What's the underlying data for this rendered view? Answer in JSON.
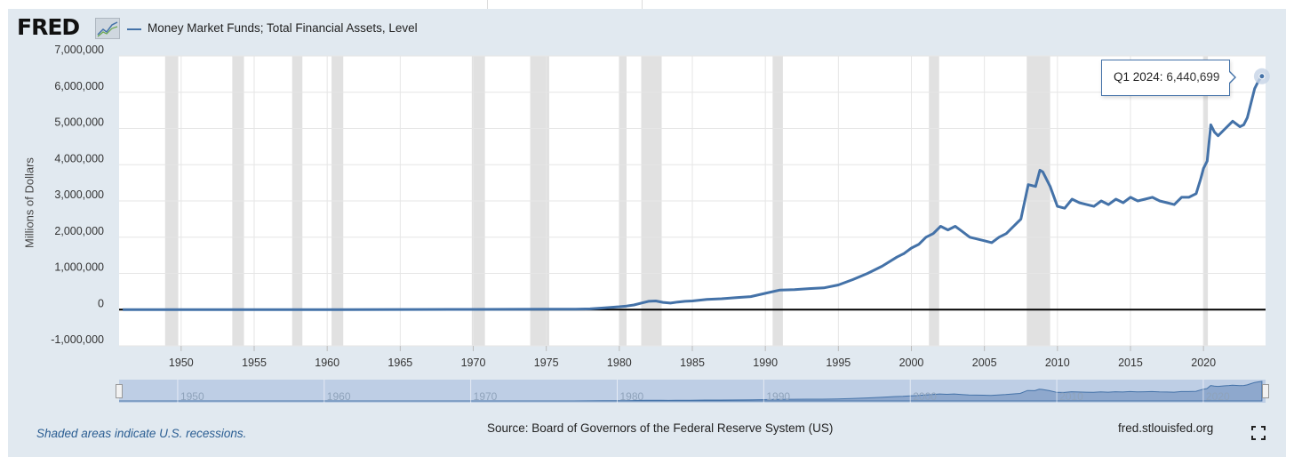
{
  "header": {
    "logo_text": "FRED",
    "logo_icon": "fred-chart-icon",
    "legend_label": "Money Market Funds; Total Financial Assets, Level"
  },
  "footer": {
    "source": "Source: Board of Governors of the Federal Reserve System (US)",
    "site": "fred.stlouisfed.org",
    "note": "Shaded areas indicate U.S. recessions.",
    "fullscreen_icon": "fullscreen-icon"
  },
  "tooltip": {
    "period": "Q1 2024:",
    "value": "6,440,699"
  },
  "colors": {
    "series": "#4472a8",
    "recession": "#e1e1e1",
    "background": "#e1e9f0"
  },
  "chart_data": {
    "type": "line",
    "title": "",
    "xlabel": "",
    "ylabel": "Millions of Dollars",
    "xlim": [
      1945.75,
      2024.25
    ],
    "ylim": [
      -1000000,
      7000000
    ],
    "grid": true,
    "legend_placement": "top-left",
    "y_ticks": [
      "7,000,000",
      "6,000,000",
      "5,000,000",
      "4,000,000",
      "3,000,000",
      "2,000,000",
      "1,000,000",
      "0",
      "-1,000,000"
    ],
    "y_tick_values": [
      7000000,
      6000000,
      5000000,
      4000000,
      3000000,
      2000000,
      1000000,
      0,
      -1000000
    ],
    "x_ticks": [
      "1950",
      "1955",
      "1960",
      "1965",
      "1970",
      "1975",
      "1980",
      "1985",
      "1990",
      "1995",
      "2000",
      "2005",
      "2010",
      "2015",
      "2020"
    ],
    "x_tick_values": [
      1950,
      1955,
      1960,
      1965,
      1970,
      1975,
      1980,
      1985,
      1990,
      1995,
      2000,
      2005,
      2010,
      2015,
      2020
    ],
    "navigator_ticks": [
      "1950",
      "1960",
      "1970",
      "1980",
      "1990",
      "2000",
      "2010",
      "2020"
    ],
    "recessions": [
      [
        1948.9,
        1949.8
      ],
      [
        1953.5,
        1954.3
      ],
      [
        1957.6,
        1958.3
      ],
      [
        1960.3,
        1961.1
      ],
      [
        1969.9,
        1970.8
      ],
      [
        1973.9,
        1975.2
      ],
      [
        1980.0,
        1980.5
      ],
      [
        1981.5,
        1982.9
      ],
      [
        1990.5,
        1991.2
      ],
      [
        2001.2,
        2001.9
      ],
      [
        2007.9,
        2009.5
      ],
      [
        2020.0,
        2020.3
      ]
    ],
    "series": [
      {
        "name": "Money Market Funds; Total Financial Assets, Level",
        "x": [
          1946.0,
          1947.0,
          1952.0,
          1960.0,
          1970.0,
          1975.0,
          1977.0,
          1978.0,
          1979.0,
          1980.0,
          1980.5,
          1981.0,
          1981.5,
          1982.0,
          1982.5,
          1983.0,
          1983.5,
          1984.0,
          1984.5,
          1985.0,
          1986.0,
          1987.0,
          1988.0,
          1989.0,
          1990.0,
          1991.0,
          1992.0,
          1993.0,
          1994.0,
          1995.0,
          1996.0,
          1997.0,
          1998.0,
          1999.0,
          1999.5,
          2000.0,
          2000.5,
          2001.0,
          2001.5,
          2002.0,
          2002.5,
          2003.0,
          2003.5,
          2004.0,
          2005.0,
          2005.5,
          2006.0,
          2006.5,
          2007.0,
          2007.5,
          2008.0,
          2008.5,
          2008.8,
          2009.0,
          2009.5,
          2010.0,
          2010.5,
          2011.0,
          2011.5,
          2012.0,
          2012.5,
          2013.0,
          2013.5,
          2014.0,
          2014.5,
          2015.0,
          2015.5,
          2016.0,
          2016.5,
          2017.0,
          2017.5,
          2018.0,
          2018.5,
          2019.0,
          2019.5,
          2019.8,
          2020.0,
          2020.25,
          2020.5,
          2020.75,
          2021.0,
          2021.5,
          2021.75,
          2022.0,
          2022.5,
          2022.75,
          2023.0,
          2023.25,
          2023.5,
          2023.75,
          2024.0
        ],
        "values": [
          0,
          0,
          0,
          0,
          5000,
          10000,
          10000,
          20000,
          50000,
          80000,
          100000,
          130000,
          180000,
          230000,
          240000,
          200000,
          180000,
          210000,
          230000,
          240000,
          280000,
          300000,
          330000,
          360000,
          450000,
          540000,
          550000,
          580000,
          600000,
          680000,
          830000,
          1000000,
          1200000,
          1450000,
          1550000,
          1700000,
          1800000,
          2000000,
          2100000,
          2300000,
          2200000,
          2300000,
          2150000,
          2000000,
          1900000,
          1850000,
          2000000,
          2100000,
          2300000,
          2500000,
          3450000,
          3400000,
          3850000,
          3800000,
          3400000,
          2850000,
          2800000,
          3050000,
          2950000,
          2900000,
          2850000,
          3000000,
          2900000,
          3050000,
          2950000,
          3100000,
          3000000,
          3050000,
          3100000,
          3000000,
          2950000,
          2900000,
          3100000,
          3100000,
          3200000,
          3600000,
          3900000,
          4100000,
          5100000,
          4900000,
          4800000,
          5000000,
          5100000,
          5200000,
          5050000,
          5100000,
          5300000,
          5700000,
          6100000,
          6300000,
          6440699
        ]
      }
    ]
  }
}
